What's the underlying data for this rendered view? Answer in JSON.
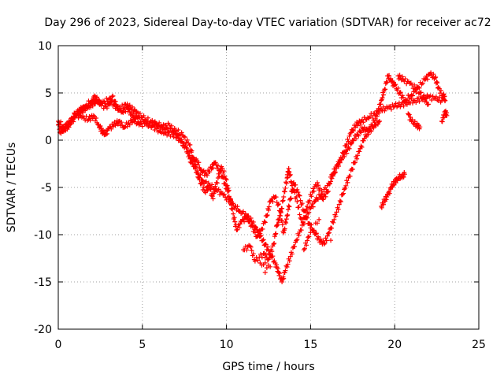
{
  "chart_data": {
    "type": "scatter",
    "title": "Day 296 of 2023, Sidereal Day-to-day VTEC variation (SDTVAR) for receiver ac72",
    "xlabel": "GPS time / hours",
    "ylabel": "SDTVAR / TECUs",
    "xlim": [
      0,
      25
    ],
    "ylim": [
      -20,
      10
    ],
    "xticks": [
      0,
      5,
      10,
      15,
      20,
      25
    ],
    "yticks": [
      -20,
      -15,
      -10,
      -5,
      0,
      5,
      10
    ],
    "grid": true,
    "marker": "+",
    "color": "#ff0000",
    "series": [
      {
        "name": "SDTVAR",
        "points": [
          [
            0.0,
            1.6
          ],
          [
            0.2,
            1.0
          ],
          [
            0.4,
            1.2
          ],
          [
            0.6,
            1.5
          ],
          [
            0.8,
            2.0
          ],
          [
            1.0,
            2.4
          ],
          [
            1.2,
            3.0
          ],
          [
            1.5,
            3.2
          ],
          [
            1.8,
            3.6
          ],
          [
            2.0,
            3.8
          ],
          [
            2.3,
            4.1
          ],
          [
            2.6,
            3.9
          ],
          [
            3.0,
            4.3
          ],
          [
            3.3,
            3.8
          ],
          [
            3.6,
            3.2
          ],
          [
            4.0,
            3.8
          ],
          [
            4.3,
            3.4
          ],
          [
            4.6,
            3.0
          ],
          [
            5.0,
            2.4
          ],
          [
            5.5,
            2.0
          ],
          [
            6.0,
            1.6
          ],
          [
            6.5,
            1.2
          ],
          [
            7.0,
            1.0
          ],
          [
            7.4,
            0.5
          ],
          [
            7.8,
            -0.5
          ],
          [
            8.0,
            -1.8
          ],
          [
            8.3,
            -3.5
          ],
          [
            8.6,
            -4.3
          ],
          [
            9.0,
            -4.8
          ],
          [
            9.4,
            -5.2
          ],
          [
            9.8,
            -5.8
          ],
          [
            10.2,
            -6.5
          ],
          [
            10.5,
            -7.0
          ],
          [
            10.8,
            -7.5
          ],
          [
            11.2,
            -8.0
          ],
          [
            11.5,
            -8.6
          ],
          [
            11.8,
            -9.5
          ],
          [
            12.0,
            -10.2
          ],
          [
            12.3,
            -11.0
          ],
          [
            12.6,
            -12.0
          ],
          [
            12.9,
            -13.0
          ],
          [
            13.1,
            -14.0
          ],
          [
            13.3,
            -15.0
          ],
          [
            13.5,
            -13.8
          ],
          [
            13.8,
            -12.3
          ],
          [
            14.1,
            -10.8
          ],
          [
            14.4,
            -9.5
          ],
          [
            14.7,
            -8.2
          ],
          [
            15.0,
            -7.2
          ],
          [
            15.3,
            -6.4
          ],
          [
            15.6,
            -5.8
          ],
          [
            16.0,
            -4.8
          ],
          [
            16.4,
            -3.5
          ],
          [
            16.8,
            -2.0
          ],
          [
            17.1,
            -0.6
          ],
          [
            17.4,
            0.8
          ],
          [
            17.7,
            1.6
          ],
          [
            18.0,
            2.0
          ],
          [
            18.4,
            2.4
          ],
          [
            18.8,
            2.8
          ],
          [
            19.2,
            3.2
          ],
          [
            19.6,
            3.4
          ],
          [
            20.0,
            3.6
          ],
          [
            20.4,
            3.8
          ],
          [
            20.8,
            4.0
          ],
          [
            21.2,
            4.2
          ],
          [
            21.6,
            4.4
          ],
          [
            22.0,
            4.6
          ],
          [
            22.4,
            4.4
          ],
          [
            22.8,
            4.2
          ],
          [
            0.0,
            2.0
          ],
          [
            0.3,
            1.4
          ],
          [
            0.7,
            1.8
          ],
          [
            1.0,
            2.8
          ],
          [
            1.4,
            2.4
          ],
          [
            1.8,
            2.2
          ],
          [
            2.1,
            2.6
          ],
          [
            2.4,
            1.6
          ],
          [
            2.6,
            1.0
          ],
          [
            2.8,
            0.6
          ],
          [
            3.0,
            1.2
          ],
          [
            3.3,
            1.6
          ],
          [
            3.6,
            2.0
          ],
          [
            3.9,
            1.4
          ],
          [
            4.2,
            1.8
          ],
          [
            4.5,
            2.2
          ],
          [
            4.8,
            1.6
          ],
          [
            5.2,
            1.8
          ],
          [
            5.6,
            1.5
          ],
          [
            6.0,
            1.0
          ],
          [
            6.4,
            0.8
          ],
          [
            6.8,
            0.6
          ],
          [
            7.2,
            0.2
          ],
          [
            7.6,
            -0.8
          ],
          [
            7.9,
            -2.4
          ],
          [
            8.2,
            -2.0
          ],
          [
            8.5,
            -3.2
          ],
          [
            8.8,
            -3.6
          ],
          [
            9.1,
            -3.0
          ],
          [
            9.3,
            -2.4
          ],
          [
            9.6,
            -3.2
          ],
          [
            9.9,
            -4.6
          ],
          [
            10.1,
            -5.4
          ],
          [
            10.4,
            -7.8
          ],
          [
            10.6,
            -9.5
          ],
          [
            10.9,
            -8.6
          ],
          [
            11.2,
            -8.2
          ],
          [
            11.5,
            -9.0
          ],
          [
            11.8,
            -10.2
          ],
          [
            12.1,
            -9.4
          ],
          [
            12.4,
            -8.0
          ],
          [
            12.6,
            -6.5
          ],
          [
            12.9,
            -6.0
          ],
          [
            13.2,
            -7.5
          ],
          [
            13.4,
            -9.8
          ],
          [
            13.6,
            -8.0
          ],
          [
            13.8,
            -6.2
          ],
          [
            14.0,
            -4.5
          ],
          [
            14.3,
            -5.8
          ],
          [
            14.6,
            -7.5
          ],
          [
            14.9,
            -8.8
          ],
          [
            15.2,
            -9.6
          ],
          [
            15.5,
            -10.5
          ],
          [
            15.8,
            -11.0
          ],
          [
            16.1,
            -9.8
          ],
          [
            16.4,
            -8.4
          ],
          [
            16.7,
            -6.8
          ],
          [
            17.0,
            -5.2
          ],
          [
            17.3,
            -3.8
          ],
          [
            17.6,
            -2.4
          ],
          [
            17.9,
            -1.2
          ],
          [
            18.2,
            0.2
          ],
          [
            18.5,
            1.0
          ],
          [
            18.8,
            1.6
          ],
          [
            19.1,
            2.0
          ],
          [
            0.1,
            0.8
          ],
          [
            0.5,
            1.6
          ],
          [
            0.9,
            2.4
          ],
          [
            1.3,
            3.2
          ],
          [
            1.6,
            3.6
          ],
          [
            2.0,
            4.2
          ],
          [
            2.2,
            4.6
          ],
          [
            2.5,
            3.8
          ],
          [
            2.9,
            3.4
          ],
          [
            3.2,
            4.6
          ],
          [
            3.5,
            3.6
          ],
          [
            3.8,
            3.0
          ],
          [
            4.1,
            3.4
          ],
          [
            4.4,
            2.6
          ],
          [
            4.7,
            2.4
          ],
          [
            5.1,
            2.0
          ],
          [
            5.4,
            1.6
          ],
          [
            5.8,
            1.8
          ],
          [
            6.2,
            1.4
          ],
          [
            6.6,
            1.6
          ],
          [
            7.0,
            0.6
          ],
          [
            7.3,
            -0.2
          ],
          [
            7.7,
            -1.2
          ],
          [
            8.1,
            -2.8
          ],
          [
            8.4,
            -4.2
          ],
          [
            8.7,
            -5.4
          ],
          [
            9.0,
            -5.0
          ],
          [
            9.2,
            -6.2
          ],
          [
            9.5,
            -4.0
          ],
          [
            9.7,
            -2.8
          ],
          [
            10.0,
            -4.2
          ],
          [
            10.3,
            -6.8
          ],
          [
            11.0,
            -11.6
          ],
          [
            11.4,
            -11.2
          ],
          [
            11.7,
            -12.8
          ],
          [
            12.2,
            -12.0
          ],
          [
            12.5,
            -12.6
          ],
          [
            12.8,
            -11.0
          ],
          [
            13.0,
            -9.0
          ],
          [
            13.2,
            -8.0
          ],
          [
            13.4,
            -6.0
          ],
          [
            13.6,
            -4.0
          ],
          [
            13.7,
            -3.0
          ],
          [
            13.9,
            -4.8
          ],
          [
            14.2,
            -6.5
          ],
          [
            14.5,
            -9.0
          ],
          [
            14.8,
            -7.0
          ],
          [
            15.1,
            -5.5
          ],
          [
            15.4,
            -4.5
          ],
          [
            15.7,
            -6.2
          ],
          [
            16.0,
            -5.5
          ],
          [
            16.3,
            -3.6
          ],
          [
            16.6,
            -2.6
          ],
          [
            16.9,
            -1.8
          ],
          [
            17.2,
            -1.0
          ],
          [
            17.5,
            0.0
          ],
          [
            17.8,
            0.6
          ],
          [
            18.1,
            1.2
          ],
          [
            18.4,
            1.0
          ],
          [
            18.7,
            1.6
          ],
          [
            19.0,
            3.0
          ],
          [
            19.2,
            4.2
          ],
          [
            19.4,
            5.4
          ],
          [
            19.6,
            6.8
          ],
          [
            19.8,
            6.2
          ],
          [
            20.0,
            5.8
          ],
          [
            20.3,
            5.0
          ],
          [
            20.6,
            4.2
          ],
          [
            21.0,
            4.8
          ],
          [
            21.4,
            5.6
          ],
          [
            21.8,
            6.4
          ],
          [
            22.1,
            7.0
          ],
          [
            22.4,
            6.6
          ],
          [
            22.6,
            5.6
          ],
          [
            22.9,
            4.4
          ],
          [
            20.2,
            6.8
          ],
          [
            20.5,
            6.4
          ],
          [
            20.9,
            6.0
          ],
          [
            21.3,
            5.4
          ],
          [
            21.7,
            4.6
          ],
          [
            22.0,
            3.8
          ],
          [
            19.2,
            -7.0
          ],
          [
            19.4,
            -6.4
          ],
          [
            19.6,
            -5.8
          ],
          [
            19.8,
            -5.0
          ],
          [
            20.0,
            -4.4
          ],
          [
            20.2,
            -4.0
          ],
          [
            20.4,
            -3.8
          ],
          [
            20.6,
            -3.6
          ],
          [
            20.8,
            2.8
          ],
          [
            21.0,
            2.0
          ],
          [
            21.3,
            1.6
          ],
          [
            21.5,
            1.4
          ],
          [
            22.8,
            2.0
          ],
          [
            23.0,
            3.0
          ],
          [
            23.1,
            2.6
          ],
          [
            22.9,
            4.8
          ],
          [
            23.0,
            4.2
          ],
          [
            12.3,
            -14.0
          ],
          [
            12.0,
            -13.0
          ],
          [
            12.6,
            -13.4
          ],
          [
            14.6,
            -11.6
          ],
          [
            14.9,
            -10.2
          ],
          [
            15.5,
            -8.4
          ],
          [
            16.2,
            -10.6
          ]
        ]
      }
    ]
  }
}
